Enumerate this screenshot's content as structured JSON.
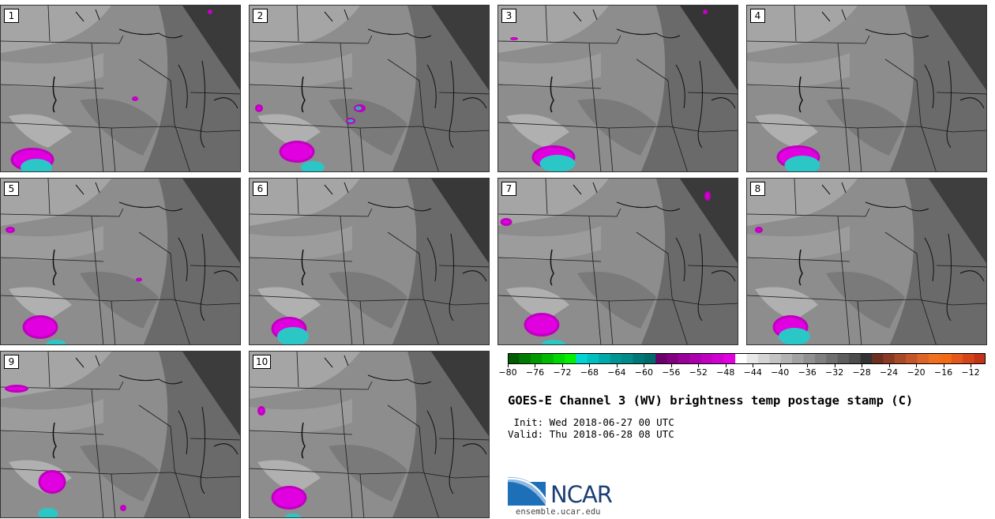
{
  "panels": [
    {
      "label": "1"
    },
    {
      "label": "2"
    },
    {
      "label": "3"
    },
    {
      "label": "4"
    },
    {
      "label": "5"
    },
    {
      "label": "6"
    },
    {
      "label": "7"
    },
    {
      "label": "8"
    },
    {
      "label": "9"
    },
    {
      "label": "10"
    }
  ],
  "colorbar": {
    "ticks": [
      "−80",
      "−76",
      "−72",
      "−68",
      "−64",
      "−60",
      "−56",
      "−52",
      "−48",
      "−44",
      "−40",
      "−36",
      "−32",
      "−28",
      "−24",
      "−20",
      "−16",
      "−12"
    ],
    "colors": [
      "#005c00",
      "#007a00",
      "#009900",
      "#00b800",
      "#00d600",
      "#00f000",
      "#00d4d4",
      "#00bfbf",
      "#00aaaa",
      "#009595",
      "#008a8a",
      "#007777",
      "#006b6b",
      "#6b006b",
      "#800080",
      "#990099",
      "#ad00ad",
      "#c000c0",
      "#d000d0",
      "#e000e0",
      "#ffffff",
      "#e8e8e8",
      "#d5d5d5",
      "#c4c4c4",
      "#b3b3b3",
      "#a2a2a2",
      "#919191",
      "#808080",
      "#6f6f6f",
      "#5e5e5e",
      "#4d4d4d",
      "#333333",
      "#6b2e1f",
      "#8a3a24",
      "#a64a28",
      "#c2562a",
      "#dd6426",
      "#ef7020",
      "#f26a16",
      "#e4561c",
      "#d4441a",
      "#c33318"
    ]
  },
  "title": "GOES-E Channel 3 (WV) brightness temp postage stamp (C)",
  "init": " Init: Wed 2018-06-27 00 UTC",
  "valid": "Valid: Thu 2018-06-28 08 UTC",
  "logo": {
    "name": "NCAR",
    "url": "ensemble.ucar.edu"
  }
}
